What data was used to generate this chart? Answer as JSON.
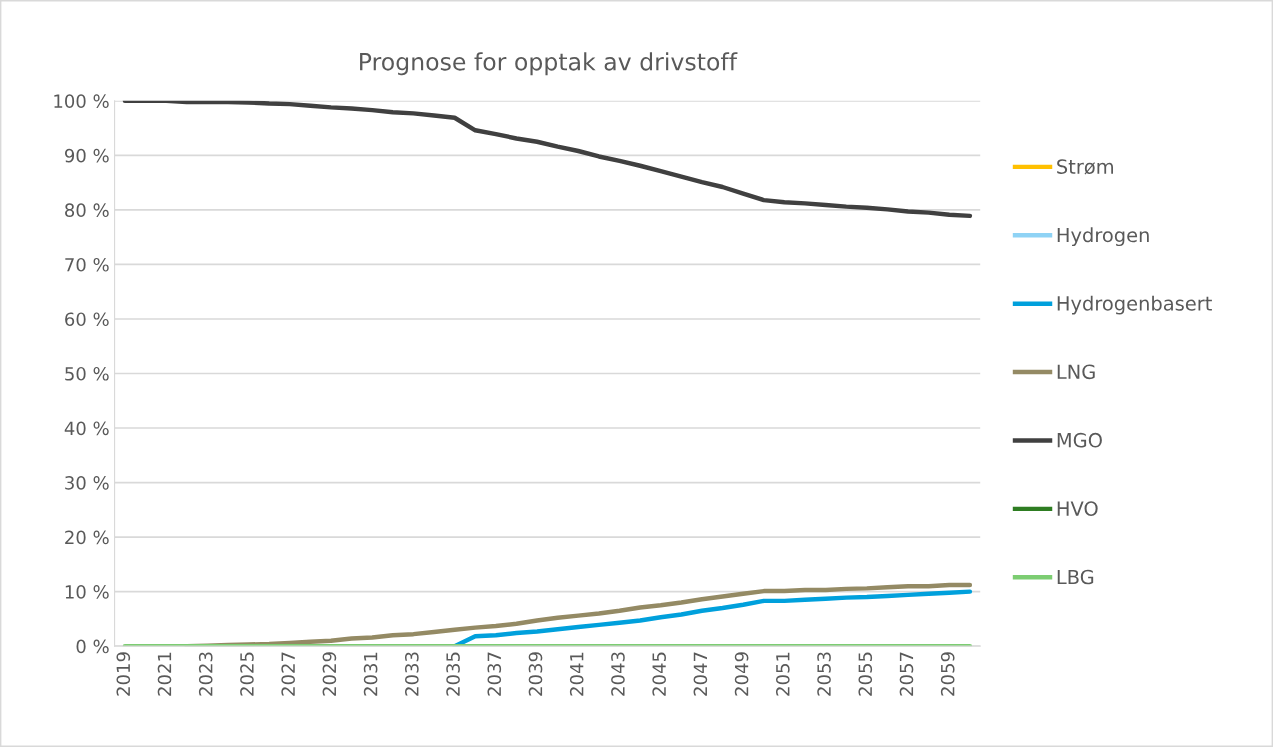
{
  "chart_data": {
    "type": "line",
    "title": "Prognose for opptak av drivstoff",
    "categories": [
      "2019",
      null,
      "2021",
      null,
      "2023",
      null,
      "2025",
      null,
      "2027",
      null,
      "2029",
      null,
      "2031",
      null,
      "2033",
      null,
      "2035",
      null,
      "2037",
      null,
      "2039",
      null,
      "2041",
      null,
      "2043",
      null,
      "2045",
      null,
      "2047",
      null,
      "2049",
      null,
      "2051",
      null,
      "2053",
      null,
      "2055",
      null,
      "2057",
      null,
      "2059",
      null
    ],
    "series": [
      {
        "name": "Strøm",
        "color": "#ffc000",
        "values": [
          null,
          null,
          null,
          null,
          null,
          null,
          null,
          null,
          null,
          null,
          null,
          null,
          null,
          null,
          null,
          null,
          null,
          null,
          null,
          null,
          null,
          null,
          null,
          null,
          null,
          null,
          null,
          null,
          null,
          null,
          null,
          null,
          null,
          null,
          null,
          null,
          null,
          null,
          null,
          null,
          null,
          null
        ]
      },
      {
        "name": "Hydrogen",
        "color": "#8fd3f5",
        "values": [
          null,
          null,
          null,
          null,
          null,
          null,
          null,
          null,
          null,
          null,
          null,
          null,
          null,
          null,
          null,
          null,
          null,
          null,
          null,
          null,
          null,
          null,
          null,
          null,
          null,
          null,
          null,
          null,
          null,
          null,
          null,
          null,
          null,
          null,
          null,
          null,
          null,
          null,
          null,
          null,
          null,
          null
        ]
      },
      {
        "name": "Hydrogenbasert",
        "color": "#00a0dc",
        "values": [
          null,
          null,
          null,
          null,
          null,
          null,
          null,
          null,
          null,
          null,
          null,
          null,
          null,
          null,
          null,
          null,
          0,
          1.8,
          2.0,
          2.4,
          2.7,
          3.1,
          3.5,
          3.9,
          4.3,
          4.7,
          5.3,
          5.8,
          6.5,
          7.0,
          7.6,
          8.3,
          8.3,
          8.5,
          8.7,
          8.9,
          9.0,
          9.2,
          9.4,
          9.6,
          9.8,
          10.0
        ]
      },
      {
        "name": "LNG",
        "color": "#948a64",
        "values": [
          null,
          null,
          null,
          0,
          0.1,
          0.2,
          0.3,
          0.4,
          0.6,
          0.8,
          1.0,
          1.4,
          1.6,
          2.0,
          2.2,
          2.6,
          3.0,
          3.4,
          3.7,
          4.1,
          4.7,
          5.2,
          5.6,
          6.0,
          6.5,
          7.1,
          7.5,
          8.0,
          8.6,
          9.1,
          9.6,
          10.1,
          10.1,
          10.3,
          10.3,
          10.5,
          10.6,
          10.8,
          11.0,
          11.0,
          11.2,
          11.2
        ]
      },
      {
        "name": "MGO",
        "color": "#404040",
        "values": [
          100,
          100,
          100,
          99.8,
          99.8,
          99.8,
          99.7,
          99.5,
          99.4,
          99.1,
          98.8,
          98.6,
          98.3,
          97.9,
          97.7,
          97.3,
          96.9,
          94.6,
          93.9,
          93.1,
          92.5,
          91.6,
          90.8,
          89.8,
          89.0,
          88.1,
          87.1,
          86.1,
          85.1,
          84.2,
          83.0,
          81.8,
          81.4,
          81.2,
          80.9,
          80.6,
          80.4,
          80.1,
          79.7,
          79.5,
          79.1,
          78.9
        ]
      },
      {
        "name": "HVO",
        "color": "#2e7d22",
        "values": [
          null,
          null,
          null,
          null,
          null,
          null,
          null,
          null,
          null,
          null,
          null,
          null,
          null,
          null,
          null,
          null,
          null,
          null,
          null,
          null,
          null,
          null,
          null,
          null,
          null,
          null,
          null,
          null,
          null,
          null,
          null,
          null,
          null,
          null,
          null,
          null,
          null,
          null,
          null,
          null,
          null,
          null
        ]
      },
      {
        "name": "LBG",
        "color": "#7ccd72",
        "values": [
          0,
          0,
          0,
          0,
          0,
          0,
          0,
          0,
          0,
          0,
          0,
          0,
          0,
          0,
          0,
          0,
          0,
          0,
          0,
          0,
          0,
          0,
          0,
          0,
          0,
          0,
          0,
          0,
          0,
          0,
          0,
          0,
          0,
          0,
          0,
          0,
          0,
          0,
          0,
          0,
          0,
          0
        ]
      }
    ],
    "ylim": [
      0,
      100
    ],
    "yticks": [
      {
        "value": 0,
        "label": "0 %"
      },
      {
        "value": 10,
        "label": "10 %"
      },
      {
        "value": 20,
        "label": "20 %"
      },
      {
        "value": 30,
        "label": "30 %"
      },
      {
        "value": 40,
        "label": "40 %"
      },
      {
        "value": 50,
        "label": "50 %"
      },
      {
        "value": 60,
        "label": "60 %"
      },
      {
        "value": 70,
        "label": "70 %"
      },
      {
        "value": 80,
        "label": "80 %"
      },
      {
        "value": 90,
        "label": "90 %"
      },
      {
        "value": 100,
        "label": "100 %"
      }
    ],
    "grid": "y",
    "legend": "right",
    "marker": "none",
    "line_style": "solid"
  }
}
